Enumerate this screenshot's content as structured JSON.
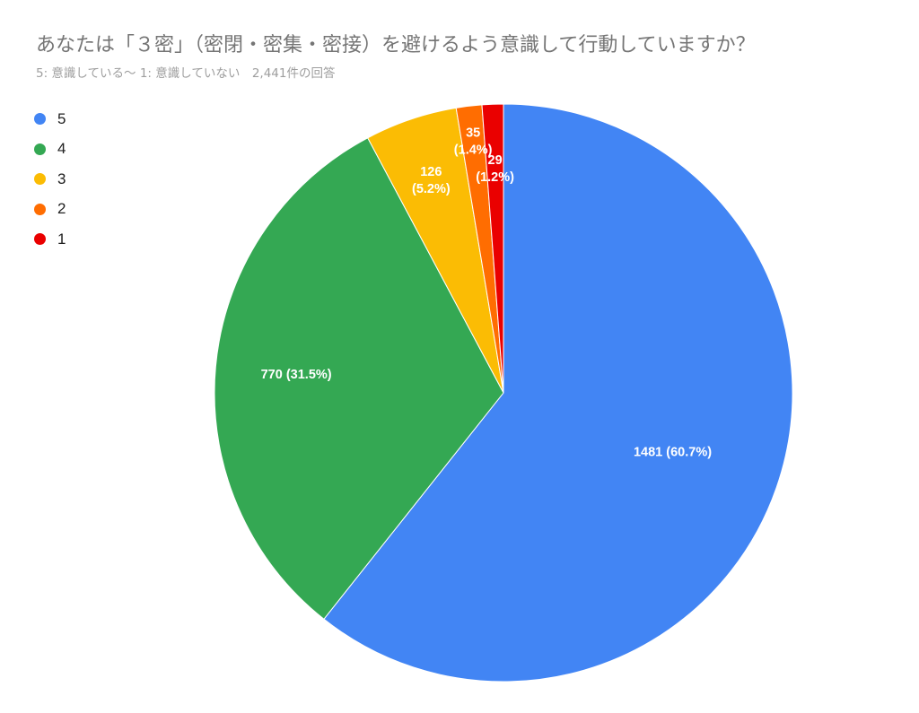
{
  "header": {
    "title": "あなたは「３密」（密閉・密集・密接）を避けるよう意識して行動していますか？",
    "subtitle": "5: 意識している〜 1: 意識していない　2,441件の回答"
  },
  "chart_data": {
    "type": "pie",
    "title": "あなたは「３密」（密閉・密集・密接）を避けるよう意識して行動していますか？",
    "subtitle": "5: 意識している〜 1: 意識していない　2,441件の回答",
    "total_responses": 2441,
    "legend_position": "top-left",
    "slices": [
      {
        "label": "5",
        "value": 1481,
        "percent": "60.7%",
        "color": "#4285f4",
        "display": "1481 (60.7%)"
      },
      {
        "label": "4",
        "value": 770,
        "percent": "31.5%",
        "color": "#34a853",
        "display": "770 (31.5%)"
      },
      {
        "label": "3",
        "value": 126,
        "percent": "5.2%",
        "color": "#fbbc04",
        "display": "126 (5.2%)"
      },
      {
        "label": "2",
        "value": 35,
        "percent": "1.4%",
        "color": "#ff6d01",
        "display": "35 (1.4%)"
      },
      {
        "label": "1",
        "value": 29,
        "percent": "1.2%",
        "color": "#ea0000",
        "display": "29 (1.2%)"
      }
    ]
  }
}
